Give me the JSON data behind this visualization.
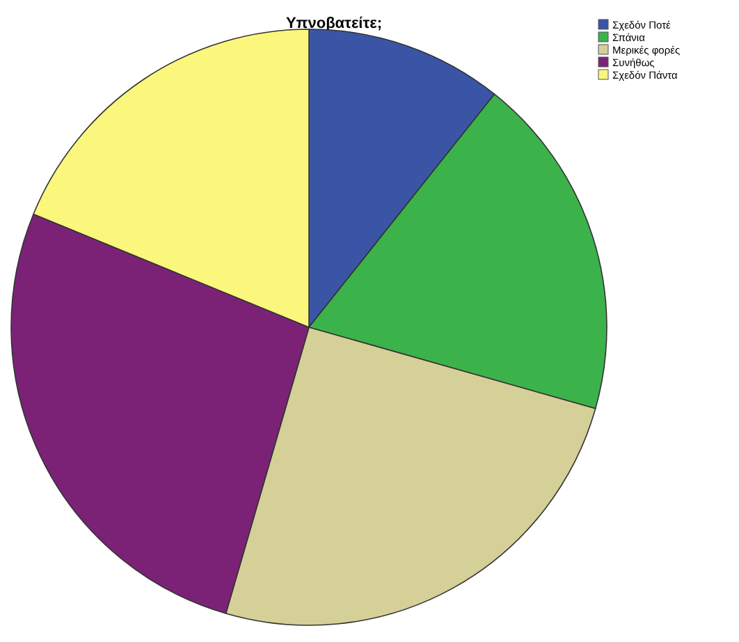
{
  "chart_data": {
    "type": "pie",
    "title": "Υπνοβατείτε;",
    "categories": [
      "Σχεδόν Ποτέ",
      "Σπάνια",
      "Μερικές φορές",
      "Συνήθως",
      "Σχεδόν Πάντα"
    ],
    "values": [
      10.7,
      18.7,
      25.1,
      26.7,
      18.8
    ],
    "colors": [
      "#3a55a6",
      "#3bb34a",
      "#d5cf98",
      "#7b2277",
      "#fbf67c"
    ],
    "legend": "top right"
  }
}
